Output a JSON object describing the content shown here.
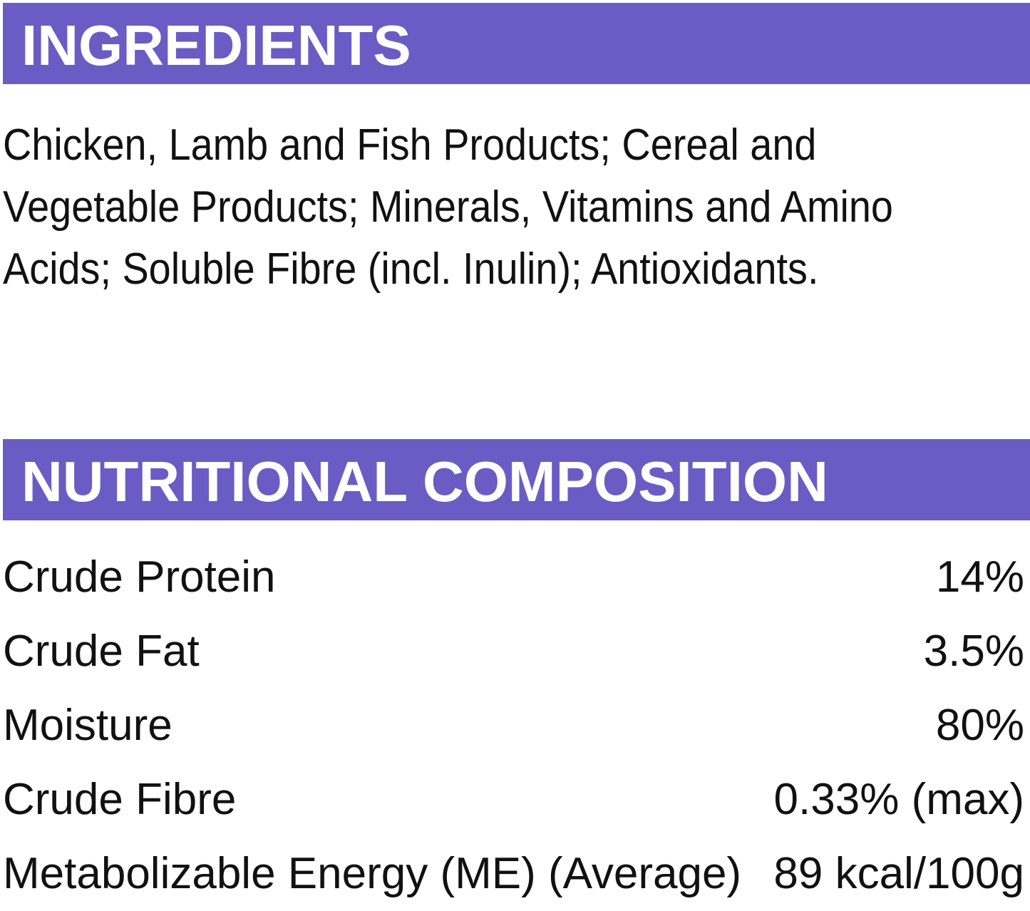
{
  "ingredients": {
    "title": "INGREDIENTS",
    "lines": [
      "Chicken, Lamb and Fish Products; Cereal and",
      "Vegetable Products; Minerals, Vitamins and Amino",
      "Acids; Soluble Fibre (incl. Inulin); Antioxidants."
    ]
  },
  "nutrition": {
    "title": "NUTRITIONAL COMPOSITION",
    "rows": [
      [
        "Crude Protein",
        "14%"
      ],
      [
        "Crude Fat",
        "3.5%"
      ],
      [
        "Moisture",
        "80%"
      ],
      [
        "Crude Fibre",
        "0.33% (max)"
      ],
      [
        "Metabolizable Energy (ME) (Average)",
        "89 kcal/100g"
      ]
    ]
  }
}
